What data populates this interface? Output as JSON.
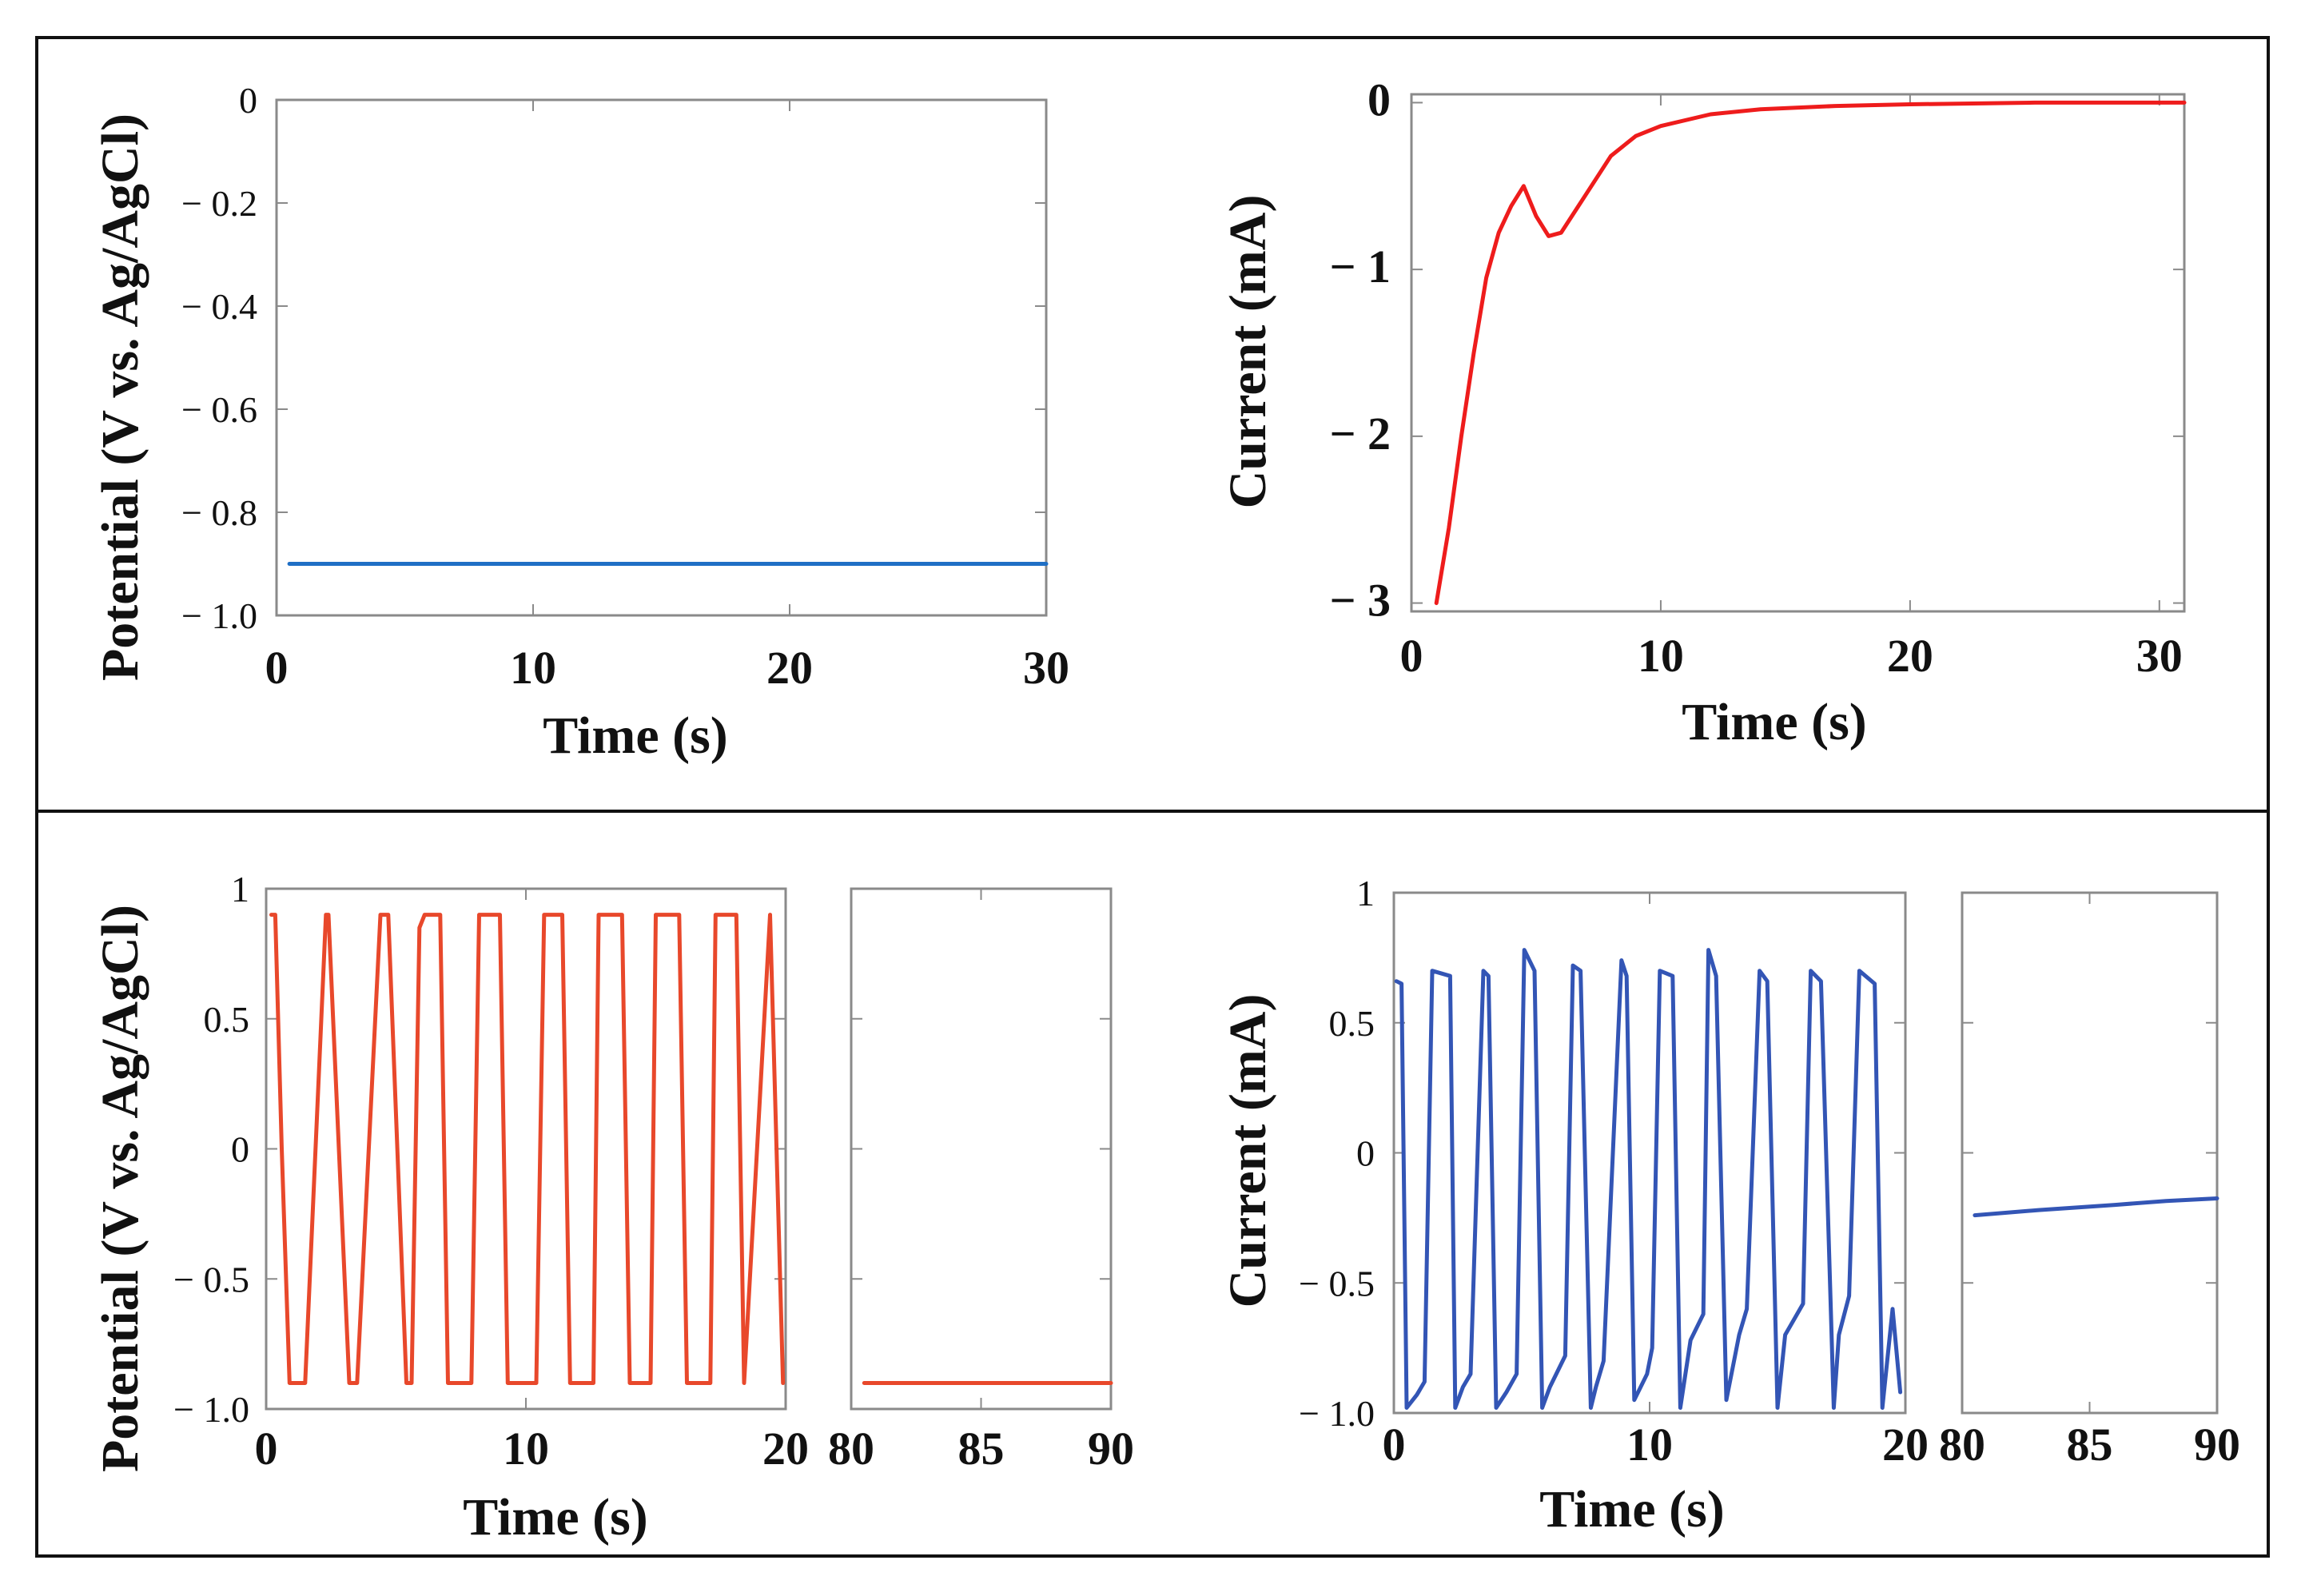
{
  "chart_data": [
    {
      "id": "top-left",
      "type": "line",
      "title": "",
      "xlabel": "Time (s)",
      "ylabel": "Potential (V vs. Ag/AgCl)",
      "xlim": [
        0,
        30
      ],
      "ylim": [
        -1.0,
        0
      ],
      "xticks": [
        0,
        10,
        20,
        30
      ],
      "xtick_labels": [
        "0",
        "10",
        "20",
        "30"
      ],
      "yticks": [
        0,
        -0.2,
        -0.4,
        -0.6,
        -0.8,
        -1.0
      ],
      "ytick_labels": [
        "0",
        "− 0.2",
        "− 0.4",
        "− 0.6",
        "− 0.8",
        "− 1.0"
      ],
      "series": [
        {
          "name": "potential",
          "color": "#1f6fc5",
          "x": [
            0.5,
            30
          ],
          "y": [
            -0.9,
            -0.9
          ]
        }
      ]
    },
    {
      "id": "top-right",
      "type": "line",
      "title": "",
      "xlabel": "Time (s)",
      "ylabel": "Current (mA)",
      "xlim": [
        0,
        31
      ],
      "ylim": [
        -3.05,
        0.05
      ],
      "xticks": [
        0,
        10,
        20,
        30
      ],
      "xtick_labels": [
        "0",
        "10",
        "20",
        "30"
      ],
      "yticks": [
        0,
        -1,
        -2,
        -3
      ],
      "ytick_labels": [
        "0",
        "− 1",
        "− 2",
        "− 3"
      ],
      "series": [
        {
          "name": "current",
          "color": "#ee1c1c",
          "x": [
            1.0,
            1.5,
            2.0,
            2.5,
            3.0,
            3.5,
            4.0,
            4.5,
            5.0,
            5.5,
            6.0,
            7.0,
            8.0,
            9.0,
            10.0,
            12.0,
            14.0,
            17.0,
            20.0,
            25.0,
            31.0
          ],
          "y": [
            -3.0,
            -2.55,
            -2.0,
            -1.5,
            -1.05,
            -0.78,
            -0.62,
            -0.5,
            -0.68,
            -0.8,
            -0.78,
            -0.55,
            -0.32,
            -0.2,
            -0.14,
            -0.07,
            -0.04,
            -0.02,
            -0.01,
            0.0,
            0.0
          ]
        }
      ]
    },
    {
      "id": "bottom-left",
      "type": "line",
      "title": "",
      "xlabel": "Time (s)",
      "ylabel": "Potential (V vs. Ag/AgCl)",
      "ylim": [
        -1.0,
        1.0
      ],
      "yticks": [
        1,
        0.5,
        0,
        -0.5,
        -1.0
      ],
      "ytick_labels": [
        "1",
        "0.5",
        "0",
        "− 0.5",
        "− 1.0"
      ],
      "panels": [
        {
          "xlim": [
            0,
            20
          ],
          "xticks": [
            0,
            10,
            20
          ],
          "xtick_labels": [
            "0",
            "10",
            "20"
          ]
        },
        {
          "xlim": [
            80,
            90
          ],
          "xticks": [
            80,
            85,
            90
          ],
          "xtick_labels": [
            "80",
            "85",
            "90"
          ]
        }
      ],
      "series": [
        {
          "name": "potential-pulses",
          "color": "#e8482b",
          "panel": 0,
          "x": [
            0.2,
            0.35,
            0.6,
            0.9,
            1.5,
            2.3,
            2.4,
            3.2,
            3.5,
            4.4,
            4.7,
            5.4,
            5.6,
            5.9,
            6.1,
            6.7,
            7.0,
            7.9,
            8.2,
            9.0,
            9.3,
            10.4,
            10.7,
            11.4,
            11.7,
            12.6,
            12.8,
            13.7,
            14.0,
            14.8,
            15.0,
            15.9,
            16.2,
            17.1,
            17.3,
            18.1,
            18.4,
            19.4,
            19.9
          ],
          "y": [
            0.9,
            0.9,
            0.0,
            -0.9,
            -0.9,
            0.9,
            0.9,
            -0.9,
            -0.9,
            0.9,
            0.9,
            -0.9,
            -0.9,
            0.85,
            0.9,
            0.9,
            -0.9,
            -0.9,
            0.9,
            0.9,
            -0.9,
            -0.9,
            0.9,
            0.9,
            -0.9,
            -0.9,
            0.9,
            0.9,
            -0.9,
            -0.9,
            0.9,
            0.9,
            -0.9,
            -0.9,
            0.9,
            0.9,
            -0.9,
            0.9,
            -0.9
          ]
        },
        {
          "name": "potential-steady",
          "color": "#e8482b",
          "panel": 1,
          "x": [
            80.5,
            90
          ],
          "y": [
            -0.9,
            -0.9
          ]
        }
      ]
    },
    {
      "id": "bottom-right",
      "type": "line",
      "title": "",
      "xlabel": "Time (s)",
      "ylabel": "Current (mA)",
      "ylim": [
        -1.0,
        1.0
      ],
      "yticks": [
        1,
        0.5,
        0,
        -0.5,
        -1.0
      ],
      "ytick_labels": [
        "1",
        "0.5",
        "0",
        "− 0.5",
        "− 1.0"
      ],
      "panels": [
        {
          "xlim": [
            0,
            20
          ],
          "xticks": [
            0,
            10,
            20
          ],
          "xtick_labels": [
            "0",
            "10",
            "20"
          ]
        },
        {
          "xlim": [
            80,
            90
          ],
          "xticks": [
            80,
            85,
            90
          ],
          "xtick_labels": [
            "80",
            "85",
            "90"
          ]
        }
      ],
      "series": [
        {
          "name": "current-pulses",
          "color": "#3355b5",
          "panel": 0,
          "x": [
            0.1,
            0.3,
            0.5,
            0.9,
            1.2,
            1.5,
            2.2,
            2.4,
            2.7,
            3.0,
            3.5,
            3.7,
            4.0,
            4.4,
            4.8,
            5.1,
            5.5,
            5.8,
            6.1,
            6.7,
            7.0,
            7.3,
            7.7,
            7.9,
            8.2,
            8.9,
            9.1,
            9.4,
            9.9,
            10.1,
            10.4,
            10.9,
            11.2,
            11.6,
            12.1,
            12.3,
            12.6,
            13.0,
            13.5,
            13.8,
            14.3,
            14.6,
            15.0,
            15.3,
            16.0,
            16.3,
            16.7,
            17.2,
            17.4,
            17.8,
            18.2,
            18.8,
            19.1,
            19.5,
            19.8
          ],
          "y": [
            0.66,
            0.65,
            -0.98,
            -0.93,
            -0.88,
            0.7,
            0.68,
            -0.98,
            -0.9,
            -0.85,
            0.7,
            0.68,
            -0.98,
            -0.92,
            -0.85,
            0.78,
            0.7,
            -0.98,
            -0.9,
            -0.78,
            0.72,
            0.7,
            -0.98,
            -0.9,
            -0.8,
            0.74,
            0.68,
            -0.95,
            -0.85,
            -0.75,
            0.7,
            0.68,
            -0.98,
            -0.72,
            -0.62,
            0.78,
            0.68,
            -0.95,
            -0.7,
            -0.6,
            0.7,
            0.66,
            -0.98,
            -0.7,
            -0.58,
            0.7,
            0.66,
            -0.98,
            -0.7,
            -0.55,
            0.7,
            0.65,
            -0.98,
            -0.6,
            -0.92
          ]
        },
        {
          "name": "current-steady",
          "color": "#3355b5",
          "panel": 1,
          "x": [
            80.5,
            83,
            86,
            88,
            90
          ],
          "y": [
            -0.24,
            -0.22,
            -0.2,
            -0.185,
            -0.175
          ]
        }
      ]
    }
  ]
}
